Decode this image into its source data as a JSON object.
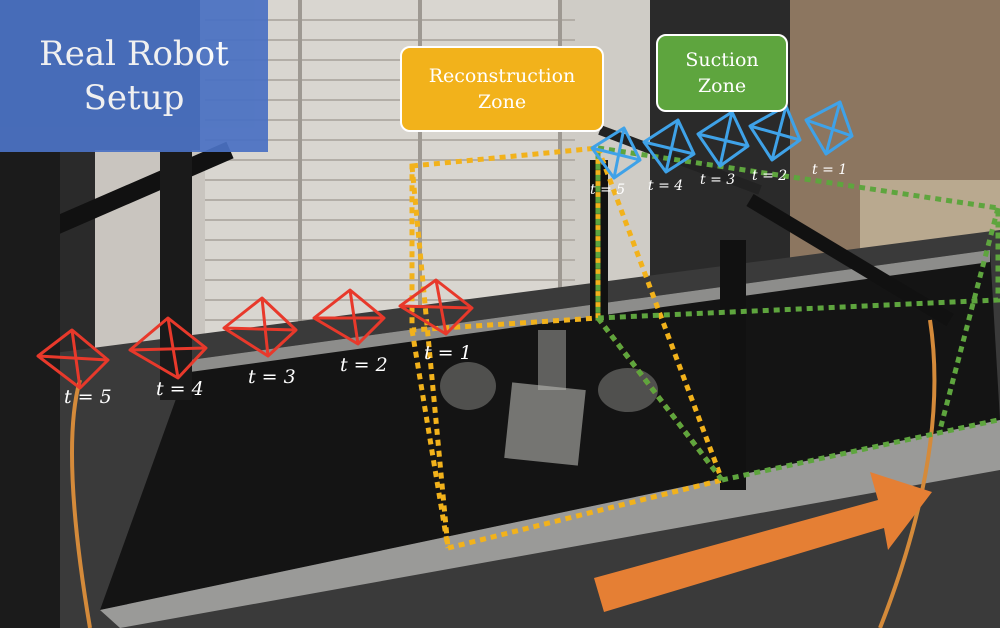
{
  "title": {
    "line1": "Real Robot",
    "line2": "Setup"
  },
  "zones": {
    "reconstruction": {
      "line1": "Reconstruction",
      "line2": "Zone"
    },
    "suction": {
      "line1": "Suction",
      "line2": "Zone"
    }
  },
  "red_cameras": [
    "t = 5",
    "t = 4",
    "t = 3",
    "t = 2",
    "t = 1"
  ],
  "blue_cameras": [
    "t = 5",
    "t = 4",
    "t = 3",
    "t = 2",
    "t = 1"
  ],
  "colors": {
    "title_box": "#4a71c3",
    "reconstruction_zone": "#f2b21b",
    "suction_zone": "#5ea53e",
    "red_camera": "#e8392b",
    "blue_camera": "#3fa2e8",
    "motion_arrow": "#e57f34"
  }
}
